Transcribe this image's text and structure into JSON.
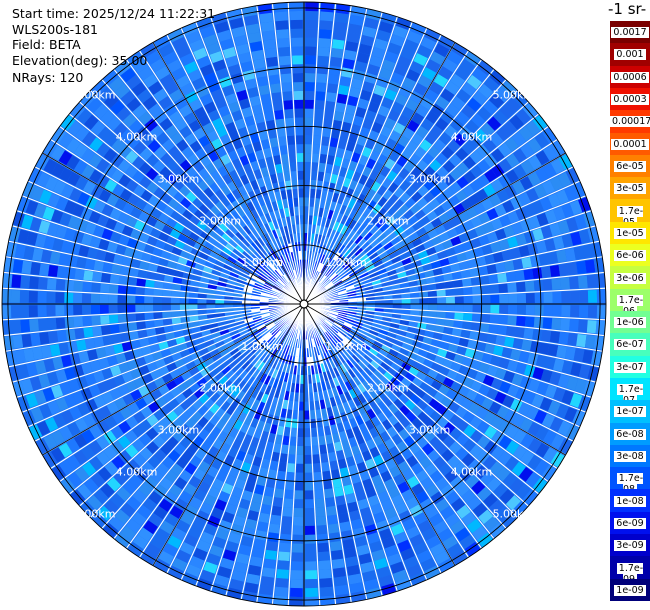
{
  "header": {
    "start_time": "Start time: 2025/12/24 11:22:31",
    "instrument": "WLS200s-181",
    "field": "Field: BETA",
    "elevation": "Elevation(deg): 35.00",
    "nrays": "NRays: 120"
  },
  "colorbar": {
    "title": "-1 sr-",
    "labels": [
      "0.0017",
      "0.001",
      "0.0006",
      "0.0003",
      "0.00017",
      "0.0001",
      "6e-05",
      "3e-05",
      "1.7e-05",
      "1e-05",
      "6e-06",
      "3e-06",
      "1.7e-06",
      "1e-06",
      "6e-07",
      "3e-07",
      "1.7e-07",
      "1e-07",
      "6e-08",
      "3e-08",
      "1.7e-08",
      "1e-08",
      "6e-09",
      "3e-09",
      "1.7e-09",
      "1e-09"
    ],
    "colors": [
      "#7a0000",
      "#a00000",
      "#cc0000",
      "#f01000",
      "#ff3a00",
      "#ff5a00",
      "#ff8000",
      "#ffa400",
      "#ffc400",
      "#ffe600",
      "#ecff20",
      "#c6ff40",
      "#9cff6a",
      "#72ff92",
      "#48ffbc",
      "#22ffe2",
      "#00e4ff",
      "#00c0ff",
      "#009cff",
      "#0078ff",
      "#0054ff",
      "#0030ff",
      "#0010ee",
      "#0000cc",
      "#0000aa",
      "#00007a"
    ]
  },
  "chart_data": {
    "type": "heatmap",
    "projection": "polar-ppi",
    "field": "BETA",
    "elevation_deg": 35.0,
    "n_rays": 120,
    "max_range_km": 5.1,
    "range_rings_km": [
      1.0,
      2.0,
      3.0,
      4.0,
      5.0
    ],
    "ring_labels": [
      "1.00km",
      "2.00km",
      "3.00km",
      "4.00km",
      "5.00km"
    ],
    "dominant_value": "1e-07",
    "value_range": [
      "1e-09",
      "6e-08"
    ]
  }
}
